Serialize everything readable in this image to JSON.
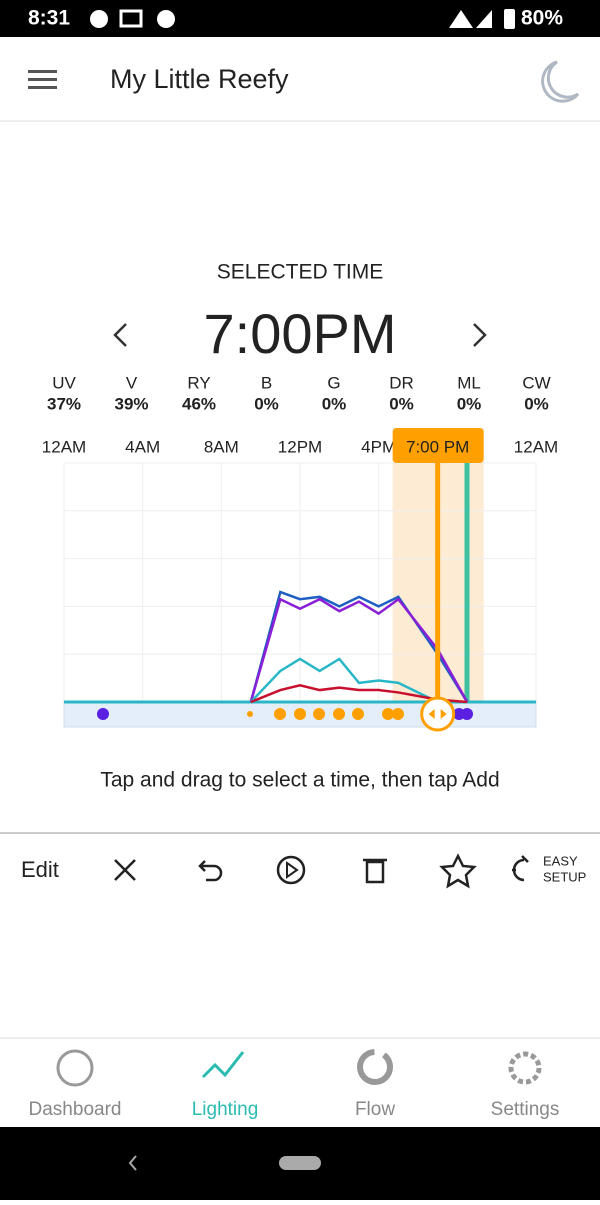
{
  "status_bar": {
    "time": "8:31",
    "battery": "80%"
  },
  "app_bar": {
    "title": "My Little Reefy"
  },
  "selected_time": {
    "heading": "SELECTED TIME",
    "time": "7:00PM"
  },
  "channels": [
    {
      "name": "UV",
      "value": "37%"
    },
    {
      "name": "V",
      "value": "39%"
    },
    {
      "name": "RY",
      "value": "46%"
    },
    {
      "name": "B",
      "value": "0%"
    },
    {
      "name": "G",
      "value": "0%"
    },
    {
      "name": "DR",
      "value": "0%"
    },
    {
      "name": "ML",
      "value": "0%"
    },
    {
      "name": "CW",
      "value": "0%"
    }
  ],
  "chart_data": {
    "type": "line",
    "x": [
      9.5,
      11,
      12,
      13,
      14,
      15,
      16,
      17,
      19,
      20.5
    ],
    "series": [
      {
        "color": "#1f5fc4",
        "values": [
          0,
          46,
          43,
          44,
          40,
          44,
          40,
          44,
          20,
          0
        ]
      },
      {
        "color": "#8a1fd6",
        "values": [
          0,
          43,
          39,
          43,
          38,
          42,
          37,
          43,
          22,
          0
        ]
      },
      {
        "color": "#29b6c6",
        "values": [
          0,
          13,
          18,
          13,
          18,
          8,
          9,
          8,
          0,
          0
        ]
      },
      {
        "color": "#c8102e",
        "values": [
          0,
          5,
          7,
          5,
          6,
          5,
          5,
          4,
          1,
          0
        ]
      }
    ],
    "xlim": [
      0,
      24
    ],
    "ylim": [
      0,
      100
    ],
    "xticks": [
      {
        "value": 0,
        "label": "12AM"
      },
      {
        "value": 4,
        "label": "4AM"
      },
      {
        "value": 8,
        "label": "8AM"
      },
      {
        "value": 12,
        "label": "12PM"
      },
      {
        "value": 16,
        "label": "4PM"
      },
      {
        "value": 24,
        "label": "12AM"
      }
    ],
    "selected": {
      "value": 19,
      "label": "7:00 PM"
    }
  },
  "hint": "Tap and drag to select a time, then tap Add",
  "toolbar": {
    "edit": "Edit",
    "easy_setup": [
      "EASY",
      "SETUP"
    ]
  },
  "bottom_nav": [
    "Dashboard",
    "Lighting",
    "Flow",
    "Settings"
  ]
}
